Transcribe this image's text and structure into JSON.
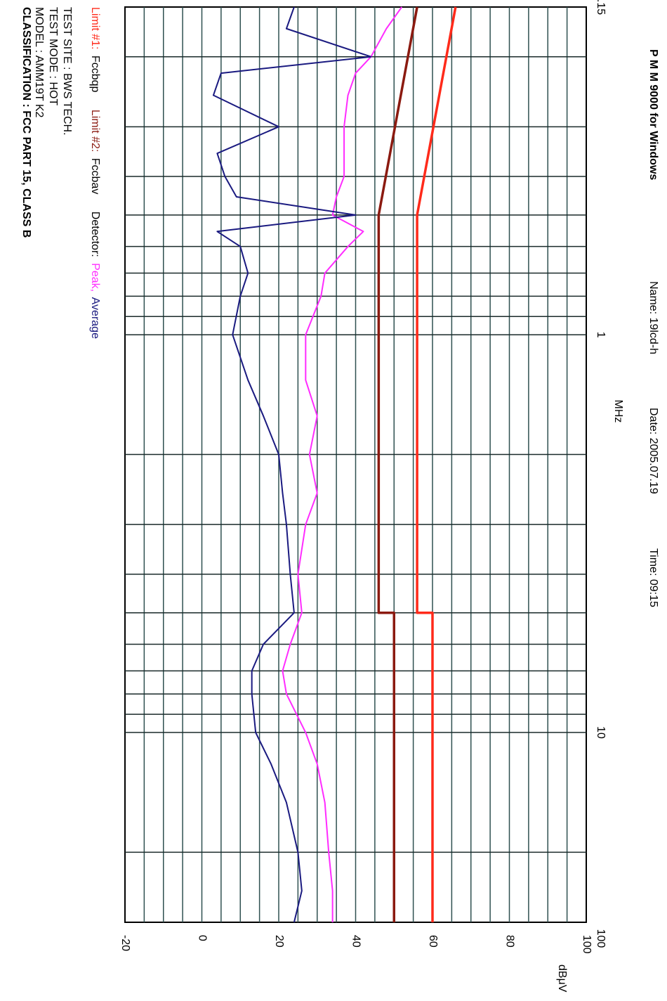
{
  "header": {
    "title": "P M M  9000 for Windows",
    "name": "Name: 19lcd-h",
    "date": "Date: 2005.07.19",
    "time": "Time: 09:15"
  },
  "chart_data": {
    "type": "line",
    "x_label": "MHz",
    "y_label": "dBμV",
    "log_x": true,
    "xlim": [
      0.15,
      30
    ],
    "xticks": [
      {
        "value": 0.15,
        "label": ".15"
      },
      1,
      10
    ],
    "x_end_label": "100",
    "xgrid": [
      0.2,
      0.3,
      0.4,
      0.5,
      0.6,
      0.7,
      0.8,
      0.9,
      1,
      2,
      3,
      4,
      5,
      6,
      7,
      8,
      9,
      10,
      20
    ],
    "ylim": [
      -20,
      100
    ],
    "yticks": [
      -20,
      0,
      20,
      40,
      60,
      80,
      100
    ],
    "ygrid": [
      -15,
      -10,
      -5,
      0,
      5,
      10,
      15,
      20,
      25,
      30,
      35,
      40,
      45,
      50,
      55,
      60,
      65,
      70,
      75,
      80,
      85,
      90,
      95
    ],
    "series": [
      {
        "label": "Limit #1:",
        "name": "Fccbqp",
        "color": "#ff2a1a",
        "x": [
          0.15,
          0.5,
          5,
          5,
          30
        ],
        "values": [
          66,
          56,
          56,
          60,
          60
        ]
      },
      {
        "label": "Limit #2:",
        "name": "Fccbav",
        "color": "#8b1a10",
        "x": [
          0.15,
          0.5,
          5,
          5,
          30
        ],
        "values": [
          56,
          46,
          46,
          50,
          50
        ]
      },
      {
        "name": "Peak,",
        "color": "#ff2cff",
        "x": [
          0.15,
          0.17,
          0.2,
          0.22,
          0.25,
          0.3,
          0.35,
          0.4,
          0.45,
          0.5,
          0.55,
          0.6,
          0.7,
          0.8,
          1,
          1.3,
          1.6,
          2,
          2.5,
          3,
          4,
          5,
          6,
          7,
          8,
          10,
          12,
          15,
          20,
          25,
          30
        ],
        "values": [
          52,
          48,
          44,
          40,
          38,
          37,
          37,
          37,
          35,
          34,
          42,
          38,
          32,
          31,
          27,
          27,
          30,
          28,
          30,
          27,
          25,
          26,
          23,
          21,
          22,
          27,
          30,
          32,
          33,
          34,
          34
        ]
      },
      {
        "name": "Average",
        "color": "#1a1a80",
        "x": [
          0.15,
          0.17,
          0.2,
          0.22,
          0.25,
          0.3,
          0.35,
          0.4,
          0.45,
          0.5,
          0.55,
          0.6,
          0.7,
          0.8,
          1,
          1.3,
          1.6,
          2,
          2.5,
          3,
          4,
          5,
          6,
          7,
          8,
          10,
          12,
          15,
          20,
          25,
          30
        ],
        "values": [
          24,
          22,
          44,
          5,
          3,
          20,
          4,
          6,
          9,
          40,
          4,
          10,
          12,
          10,
          8,
          12,
          16,
          20,
          21,
          22,
          23,
          24,
          16,
          13,
          13,
          14,
          18,
          22,
          25,
          26,
          24
        ]
      }
    ],
    "detector_label": "Detector:"
  },
  "info": [
    "TEST SITE : BWS TECH.",
    "TEST MODE : HOT",
    "MODEL : AMM19T K2",
    "CLASSIFICATION : FCC PART 15, CLASS B"
  ]
}
